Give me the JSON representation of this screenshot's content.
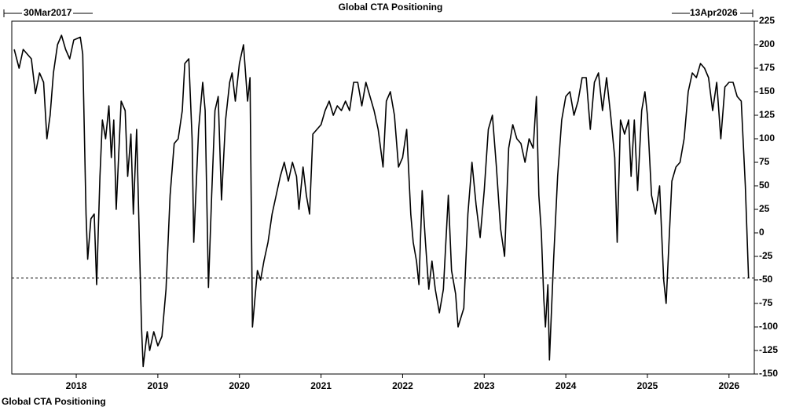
{
  "chart_data": {
    "type": "line",
    "title": "Global CTA Positioning",
    "start_label": "30Mar2017",
    "end_label": "13Apr2026",
    "reference_line": -48,
    "xlim": [
      2017.21,
      2026.31
    ],
    "xticks": [
      2018,
      2019,
      2020,
      2021,
      2022,
      2023,
      2024,
      2025,
      2026
    ],
    "ylim": [
      -150,
      225
    ],
    "yticks": [
      225,
      200,
      175,
      150,
      125,
      100,
      75,
      50,
      25,
      0,
      -25,
      -50,
      -75,
      -100,
      -125,
      -150
    ],
    "grid": false,
    "legend": "bottom-left",
    "series": [
      {
        "name": "Global CTA Positioning",
        "color": "#000000",
        "x": [
          2017.24,
          2017.3,
          2017.35,
          2017.45,
          2017.5,
          2017.55,
          2017.6,
          2017.64,
          2017.68,
          2017.72,
          2017.77,
          2017.82,
          2017.87,
          2017.92,
          2017.97,
          2018.05,
          2018.08,
          2018.12,
          2018.14,
          2018.18,
          2018.22,
          2018.25,
          2018.29,
          2018.32,
          2018.36,
          2018.4,
          2018.43,
          2018.46,
          2018.49,
          2018.55,
          2018.6,
          2018.63,
          2018.67,
          2018.7,
          2018.74,
          2018.78,
          2018.8,
          2018.82,
          2018.87,
          2018.9,
          2018.95,
          2019.0,
          2019.05,
          2019.1,
          2019.15,
          2019.2,
          2019.25,
          2019.3,
          2019.33,
          2019.38,
          2019.42,
          2019.44,
          2019.5,
          2019.55,
          2019.58,
          2019.62,
          2019.66,
          2019.7,
          2019.74,
          2019.78,
          2019.83,
          2019.88,
          2019.91,
          2019.95,
          2020.0,
          2020.05,
          2020.1,
          2020.13,
          2020.16,
          2020.22,
          2020.26,
          2020.3,
          2020.35,
          2020.4,
          2020.45,
          2020.5,
          2020.55,
          2020.6,
          2020.65,
          2020.7,
          2020.73,
          2020.78,
          2020.82,
          2020.86,
          2020.9,
          2020.95,
          2021.0,
          2021.05,
          2021.1,
          2021.15,
          2021.2,
          2021.25,
          2021.3,
          2021.35,
          2021.4,
          2021.45,
          2021.5,
          2021.55,
          2021.6,
          2021.65,
          2021.7,
          2021.76,
          2021.8,
          2021.85,
          2021.9,
          2021.95,
          2022.0,
          2022.05,
          2022.1,
          2022.13,
          2022.17,
          2022.2,
          2022.24,
          2022.28,
          2022.32,
          2022.36,
          2022.4,
          2022.45,
          2022.5,
          2022.56,
          2022.6,
          2022.65,
          2022.68,
          2022.75,
          2022.8,
          2022.85,
          2022.9,
          2022.95,
          2023.0,
          2023.05,
          2023.1,
          2023.15,
          2023.2,
          2023.25,
          2023.3,
          2023.35,
          2023.4,
          2023.45,
          2023.5,
          2023.55,
          2023.6,
          2023.64,
          2023.67,
          2023.7,
          2023.73,
          2023.75,
          2023.78,
          2023.8,
          2023.85,
          2023.9,
          2023.95,
          2024.0,
          2024.05,
          2024.1,
          2024.15,
          2024.2,
          2024.25,
          2024.3,
          2024.35,
          2024.4,
          2024.45,
          2024.5,
          2024.55,
          2024.6,
          2024.63,
          2024.67,
          2024.72,
          2024.77,
          2024.8,
          2024.84,
          2024.88,
          2024.93,
          2024.97,
          2025.0,
          2025.05,
          2025.1,
          2025.15,
          2025.2,
          2025.23,
          2025.27,
          2025.3,
          2025.35,
          2025.4,
          2025.45,
          2025.5,
          2025.55,
          2025.6,
          2025.65,
          2025.7,
          2025.75,
          2025.8,
          2025.85,
          2025.9,
          2025.95,
          2026.0,
          2026.05,
          2026.1,
          2026.15,
          2026.2,
          2026.24
        ],
        "values": [
          195,
          175,
          195,
          185,
          148,
          170,
          160,
          100,
          125,
          170,
          200,
          210,
          195,
          185,
          205,
          208,
          190,
          20,
          -28,
          15,
          20,
          -55,
          60,
          120,
          100,
          135,
          80,
          120,
          25,
          140,
          130,
          60,
          105,
          20,
          110,
          -30,
          -100,
          -142,
          -105,
          -125,
          -105,
          -120,
          -110,
          -60,
          40,
          95,
          100,
          130,
          180,
          185,
          100,
          -10,
          110,
          160,
          130,
          -58,
          40,
          130,
          145,
          35,
          120,
          160,
          170,
          140,
          180,
          200,
          140,
          165,
          -100,
          -40,
          -50,
          -30,
          -10,
          20,
          40,
          60,
          75,
          55,
          75,
          60,
          25,
          70,
          40,
          20,
          105,
          110,
          115,
          130,
          140,
          125,
          135,
          130,
          140,
          130,
          160,
          160,
          135,
          160,
          145,
          130,
          110,
          70,
          140,
          150,
          125,
          70,
          80,
          110,
          20,
          -10,
          -30,
          -55,
          45,
          -10,
          -60,
          -30,
          -60,
          -85,
          -60,
          40,
          -40,
          -65,
          -100,
          -80,
          20,
          75,
          30,
          -5,
          45,
          110,
          125,
          70,
          5,
          -25,
          90,
          115,
          100,
          95,
          75,
          100,
          90,
          145,
          40,
          0,
          -70,
          -100,
          -55,
          -135,
          -30,
          60,
          120,
          145,
          150,
          125,
          140,
          165,
          165,
          110,
          160,
          170,
          130,
          165,
          125,
          80,
          -10,
          120,
          105,
          120,
          60,
          120,
          45,
          130,
          150,
          125,
          40,
          20,
          50,
          -50,
          -75,
          0,
          55,
          70,
          75,
          100,
          150,
          170,
          165,
          180,
          175,
          165,
          130,
          160,
          100,
          155,
          160,
          160,
          145,
          140,
          50,
          -48
        ]
      }
    ]
  }
}
